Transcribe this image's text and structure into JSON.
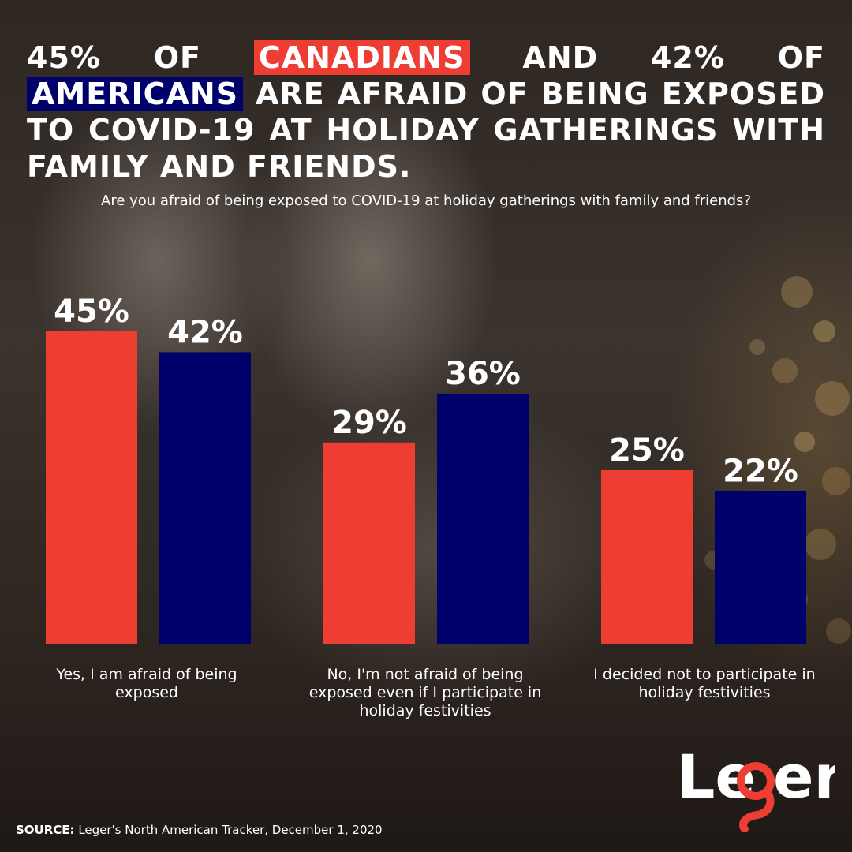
{
  "headline": {
    "part1": "45% OF ",
    "highlight_canadians": "CANADIANS",
    "part2": " AND 42% OF ",
    "highlight_americans": "AMERICANS",
    "part3": " ARE AFRAID OF BEING EXPOSED TO COVID-19 AT HOLIDAY GATHERINGS WITH FAMILY AND FRIENDS."
  },
  "question": "Are you afraid of being exposed to COVID-19 at holiday gatherings with family and friends?",
  "colors": {
    "canadians": "#ee3d33",
    "americans": "#00006b",
    "text": "#ffffff"
  },
  "chart_data": {
    "type": "bar",
    "categories": [
      "Yes, I am afraid of being exposed",
      "No, I'm not afraid of being exposed even if I participate in holiday festivities",
      "I decided not to participate in holiday festivities"
    ],
    "series": [
      {
        "values": [
          45,
          29,
          25
        ],
        "labels": [
          "45%",
          "29%",
          "25%"
        ],
        "color": "#ee3d33"
      },
      {
        "values": [
          42,
          36,
          22
        ],
        "labels": [
          "42%",
          "36%",
          "22%"
        ],
        "color": "#00006b"
      }
    ],
    "ylim": [
      0,
      45
    ],
    "grid": false,
    "legend": "none"
  },
  "source": {
    "label": "SOURCE:",
    "text": " Leger's North American Tracker, December 1, 2020"
  },
  "logo": {
    "name": "leger-logo",
    "text": "Leger"
  }
}
